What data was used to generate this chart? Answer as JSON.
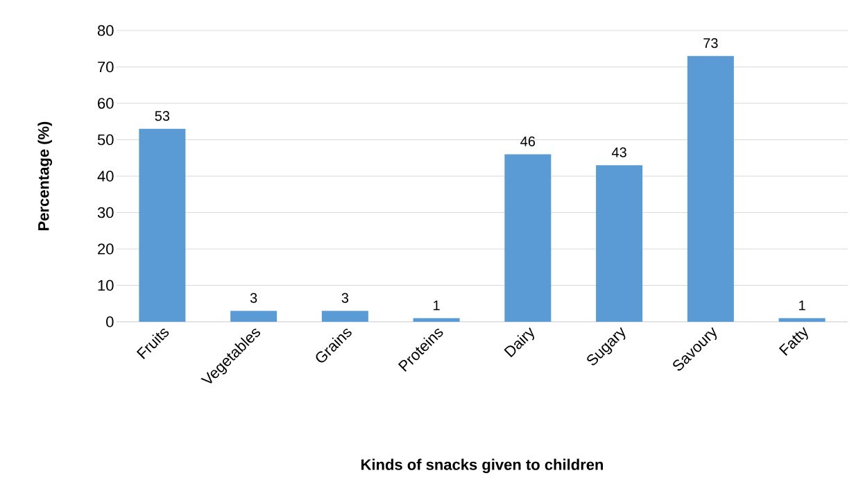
{
  "chart_data": {
    "type": "bar",
    "xlabel": "Kinds of snacks given to children",
    "ylabel": "Percentage (%)",
    "categories": [
      "Fruits",
      "Vegetables",
      "Grains",
      "Proteins",
      "Dairy",
      "Sugary",
      "Savoury",
      "Fatty"
    ],
    "values": [
      53,
      3,
      3,
      1,
      46,
      43,
      73,
      1
    ],
    "color": "#5b9bd5",
    "ylim": [
      0,
      80
    ],
    "yticks": [
      0,
      10,
      20,
      30,
      40,
      50,
      60,
      70,
      80
    ],
    "grid": "y",
    "data_labels": true
  }
}
